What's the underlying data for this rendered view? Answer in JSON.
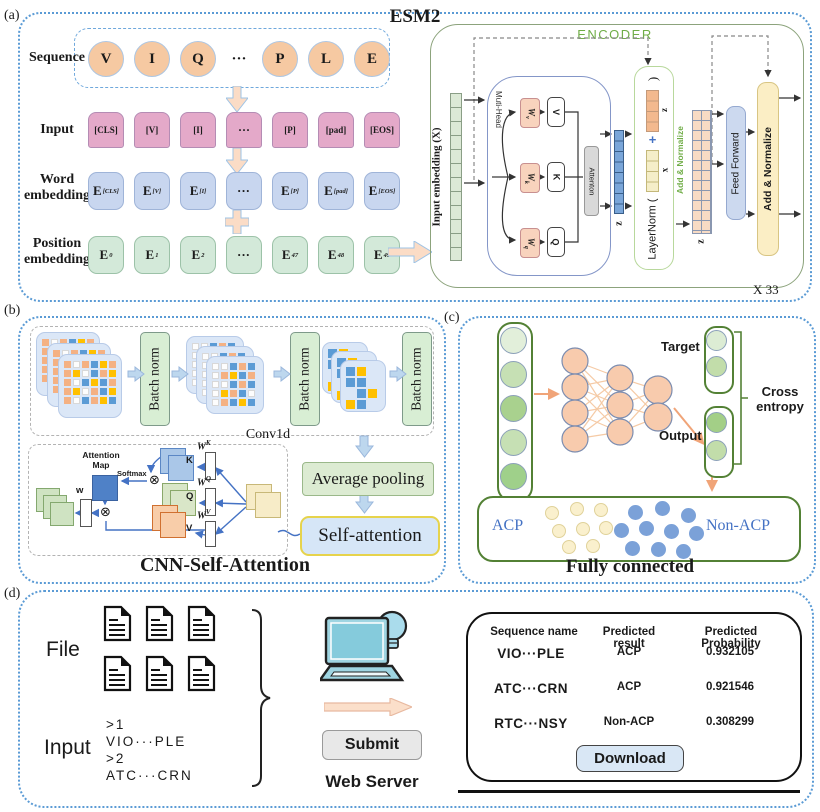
{
  "panel_a": {
    "label": "(a)",
    "title": "ESM2",
    "sequence_label": "Sequence",
    "sequence_tokens": [
      "V",
      "I",
      "Q",
      "···",
      "P",
      "L",
      "E"
    ],
    "input_label": "Input",
    "input_tokens": [
      "[CLS]",
      "[V]",
      "[I]",
      "···",
      "[P]",
      "[pad]",
      "[EOS]"
    ],
    "word_label": "Word embedding",
    "word_tokens": [
      {
        "main": "E",
        "sub": "[CLS]"
      },
      {
        "main": "E",
        "sub": "[V]"
      },
      {
        "main": "E",
        "sub": "[I]"
      },
      {
        "main": "···",
        "sub": ""
      },
      {
        "main": "E",
        "sub": "[P]"
      },
      {
        "main": "E",
        "sub": "[pad]"
      },
      {
        "main": "E",
        "sub": "[EOS]"
      }
    ],
    "position_label": "Position embedding",
    "position_tokens": [
      {
        "main": "E",
        "sub": "0"
      },
      {
        "main": "E",
        "sub": "1"
      },
      {
        "main": "E",
        "sub": "2"
      },
      {
        "main": "···",
        "sub": ""
      },
      {
        "main": "E",
        "sub": "47"
      },
      {
        "main": "E",
        "sub": "48"
      },
      {
        "main": "E",
        "sub": "49"
      }
    ],
    "encoder": {
      "title": "ENCODER",
      "repeat_note": "X 33",
      "input_label": "Input  embedding (X)",
      "multihead": "Muti-Head",
      "attention": "Attenton",
      "wv_main": "W",
      "wv_sub": "v",
      "wk_main": "W",
      "wk_sub": "k",
      "wq_main": "W",
      "wq_sub": "q",
      "v": "V",
      "k": "K",
      "q": "Q",
      "z1": "z",
      "paren": ")",
      "ln_z": "z",
      "plus": "+",
      "ln_x": "x",
      "layernorm": "LayerNorm (",
      "add_normalize": "Add & Normalize",
      "z2": "z",
      "feed_forward": "Feed Forward",
      "add_normalize2": "Add & Normalize"
    }
  },
  "panel_b": {
    "label": "(b)",
    "batch_norm": "Batch norm",
    "conv": "Conv1d",
    "avg_pool": "Average pooling",
    "self_attention": "Self-attention",
    "caption": "CNN-Self-Attention",
    "attention_map": "Attention Map",
    "softmax": "Softmax",
    "w": "w",
    "k": "K",
    "q": "Q",
    "v": "V",
    "w_main": "W",
    "wk_sup": "K",
    "wq_sup": "Q",
    "wv_sup": "V",
    "stacks": {
      "s1": {
        "pattern": [
          "OWOBYO",
          "OYWBOY",
          "OWBYBO",
          "OYWOBY",
          "OWBOYB"
        ]
      },
      "s2": {
        "pattern": [
          "WWBOB",
          "WOYBO",
          "WWBOB",
          "WYOBW",
          "WOBYB"
        ]
      },
      "s3": {
        "pattern": [
          "BY.",
          "BB.",
          ".BY",
          "YB."
        ]
      }
    }
  },
  "panel_c": {
    "label": "(c)",
    "target": "Target",
    "output": "Output",
    "cross_entropy": "Cross entropy",
    "acp": "ACP",
    "non_acp": "Non-ACP",
    "caption": "Fully connected",
    "input_node_colors": [
      "#e2efda",
      "#c6e0b4",
      "#a9d18e",
      "#c6e0b4",
      "#9fd08a"
    ],
    "target_node_colors": [
      "#dcecd4",
      "#c2ddaa"
    ],
    "output_node_colors": [
      "#a3cf87",
      "#c2ddaa"
    ],
    "acp_dots": [
      [
        545,
        506
      ],
      [
        570,
        502
      ],
      [
        594,
        503
      ],
      [
        552,
        524
      ],
      [
        576,
        522
      ],
      [
        599,
        521
      ],
      [
        562,
        540
      ],
      [
        586,
        539
      ]
    ],
    "nonacp_dots": [
      [
        628,
        505
      ],
      [
        655,
        501
      ],
      [
        681,
        508
      ],
      [
        614,
        523
      ],
      [
        639,
        521
      ],
      [
        664,
        524
      ],
      [
        689,
        526
      ],
      [
        625,
        541
      ],
      [
        651,
        542
      ],
      [
        676,
        544
      ]
    ]
  },
  "panel_d": {
    "label": "(d)",
    "file_label": "File",
    "input_label": "Input",
    "input_lines": [
      ">1",
      "VIO···PLE",
      ">2",
      "ATC···CRN"
    ],
    "submit": "Submit",
    "web_server": "Web Server",
    "table": {
      "headers": [
        "Sequence name",
        "Predicted result",
        "Predicted Probability"
      ],
      "rows": [
        [
          "VIO···PLE",
          "ACP",
          "0.932105"
        ],
        [
          "ATC···CRN",
          "ACP",
          "0.921546"
        ],
        [
          "RTC···NSY",
          "Non-ACP",
          "0.308299"
        ]
      ]
    },
    "download": "Download"
  },
  "colors": {
    "panelblue": "#5b9bd5",
    "seqcircle": "#f6c9a2",
    "inptok": "#e4a9c9",
    "wordtok": "#c8d6ef",
    "postok": "#d3e9d9",
    "arrowpeach": "#fbdcc6",
    "encodergreen": "#70ad47",
    "stripgreen": "#dce9d6",
    "stripblue": "#7aa6d9",
    "striporange": "#f3b98e",
    "stripyellow": "#f5eec8",
    "strippeach": "#f8dbc4",
    "wboxpeach": "#f8d3bd",
    "attgray": "#d9d9d9",
    "ffblue": "#ccd9ef",
    "addnormyellow": "#fbeec5",
    "bngreen": "#d8eed4",
    "cardblue": "#dbe7f7",
    "cellorange": "#f4b183",
    "cellblue": "#5b9bd5",
    "cellyellow": "#ffc000",
    "avgpoolgreen": "#dcebd2",
    "selfattblue": "#d6e6f7",
    "selfattborder": "#e6d34c",
    "nnnode": "#f8cbad",
    "greenborder": "#538135",
    "acpdot": "#faf0cd",
    "nonacpdot": "#7ba1d8",
    "blueaccent": "#4472c4",
    "submitgray": "#e8e8e8",
    "downloadblue": "#d9e7f5",
    "laptopblue": "#9fd5e2"
  }
}
